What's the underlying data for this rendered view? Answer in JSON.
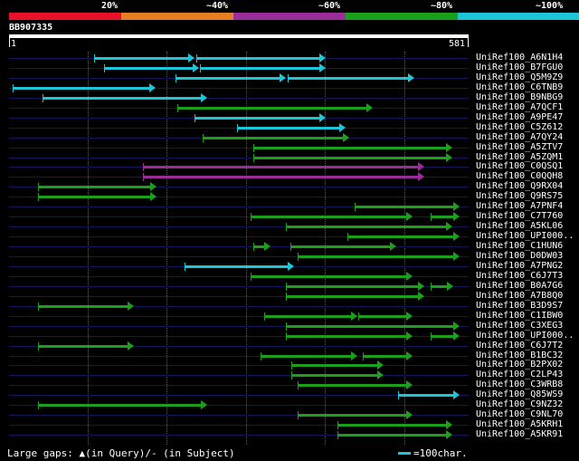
{
  "scale_bar": {
    "segments": [
      {
        "label": "20%",
        "color": "#e8102a"
      },
      {
        "label": "~40%",
        "color": "#e67e22"
      },
      {
        "label": "~60%",
        "color": "#9b2d9b"
      },
      {
        "label": "~80%",
        "color": "#1aa01a"
      },
      {
        "label": "~100%",
        "color": "#1cc6d6"
      }
    ]
  },
  "query": {
    "name": "BB907335",
    "start_label": "1",
    "end_label": "581",
    "length": 581
  },
  "hits": [
    {
      "name": "UniRef100_A6N1H4",
      "color": "#1cc6d6",
      "segs": [
        [
          107,
          235
        ],
        [
          237,
          400
        ]
      ]
    },
    {
      "name": "UniRef100_B7FGU0",
      "color": "#1cc6d6",
      "segs": [
        [
          120,
          240
        ],
        [
          241,
          400
        ]
      ]
    },
    {
      "name": "UniRef100_Q5M9Z9",
      "color": "#1cc6d6",
      "segs": [
        [
          210,
          350
        ],
        [
          352,
          512
        ]
      ]
    },
    {
      "name": "UniRef100_C6TNB9",
      "color": "#1cc6d6",
      "segs": [
        [
          5,
          185
        ]
      ]
    },
    {
      "name": "UniRef100_B9NBG9",
      "color": "#1cc6d6",
      "segs": [
        [
          42,
          250
        ]
      ]
    },
    {
      "name": "UniRef100_A7QCF1",
      "color": "#1aa01a",
      "segs": [
        [
          213,
          460
        ]
      ]
    },
    {
      "name": "UniRef100_A9PE47",
      "color": "#1cc6d6",
      "segs": [
        [
          235,
          400
        ]
      ]
    },
    {
      "name": "UniRef100_C5Z612",
      "color": "#1cc6d6",
      "segs": [
        [
          288,
          425
        ]
      ]
    },
    {
      "name": "UniRef100_A7QY24",
      "color": "#1aa01a",
      "segs": [
        [
          245,
          430
        ]
      ]
    },
    {
      "name": "UniRef100_A5ZTV7",
      "color": "#1aa01a",
      "segs": [
        [
          309,
          560
        ]
      ]
    },
    {
      "name": "UniRef100_A5ZQM1",
      "color": "#1aa01a",
      "segs": [
        [
          309,
          560
        ]
      ]
    },
    {
      "name": "UniRef100_C0QSQ1",
      "color": "#9b2d9b",
      "segs": [
        [
          169,
          525
        ]
      ]
    },
    {
      "name": "UniRef100_C0QQH8",
      "color": "#9b2d9b",
      "segs": [
        [
          169,
          525
        ]
      ]
    },
    {
      "name": "UniRef100_Q9RX04",
      "color": "#1aa01a",
      "segs": [
        [
          37,
          186
        ]
      ]
    },
    {
      "name": "UniRef100_Q9RS75",
      "color": "#1aa01a",
      "segs": [
        [
          37,
          186
        ]
      ]
    },
    {
      "name": "UniRef100_A7PNF4",
      "color": "#1aa01a",
      "segs": [
        [
          437,
          570
        ]
      ]
    },
    {
      "name": "UniRef100_C7T760",
      "color": "#1aa01a",
      "segs": [
        [
          305,
          510
        ],
        [
          533,
          570
        ]
      ]
    },
    {
      "name": "UniRef100_A5KL06",
      "color": "#1aa01a",
      "segs": [
        [
          350,
          560
        ]
      ]
    },
    {
      "name": "UniRef100_UPI000..",
      "color": "#1aa01a",
      "segs": [
        [
          428,
          570
        ]
      ]
    },
    {
      "name": "UniRef100_C1HUN6",
      "color": "#1aa01a",
      "segs": [
        [
          309,
          330
        ],
        [
          356,
          490
        ]
      ]
    },
    {
      "name": "UniRef100_D0DW03",
      "color": "#1aa01a",
      "segs": [
        [
          365,
          570
        ]
      ]
    },
    {
      "name": "UniRef100_A7PNG2",
      "color": "#1cc6d6",
      "segs": [
        [
          222,
          360
        ]
      ]
    },
    {
      "name": "UniRef100_C6J7T3",
      "color": "#1aa01a",
      "segs": [
        [
          305,
          510
        ]
      ]
    },
    {
      "name": "UniRef100_B0A7G6",
      "color": "#1aa01a",
      "segs": [
        [
          350,
          525
        ],
        [
          533,
          562
        ]
      ]
    },
    {
      "name": "UniRef100_A7B8Q0",
      "color": "#1aa01a",
      "segs": [
        [
          350,
          525
        ]
      ]
    },
    {
      "name": "UniRef100_B3D9S7",
      "color": "#1aa01a",
      "segs": [
        [
          37,
          158
        ]
      ]
    },
    {
      "name": "UniRef100_C1IBW0",
      "color": "#1aa01a",
      "segs": [
        [
          322,
          440
        ],
        [
          442,
          510
        ]
      ]
    },
    {
      "name": "UniRef100_C3XEG3",
      "color": "#1aa01a",
      "segs": [
        [
          350,
          570
        ]
      ]
    },
    {
      "name": "UniRef100_UPI000..",
      "color": "#1aa01a",
      "segs": [
        [
          350,
          510
        ],
        [
          533,
          570
        ]
      ]
    },
    {
      "name": "UniRef100_C6J7T2",
      "color": "#1aa01a",
      "segs": [
        [
          37,
          158
        ]
      ]
    },
    {
      "name": "UniRef100_B1BC32",
      "color": "#1aa01a",
      "segs": [
        [
          318,
          440
        ],
        [
          447,
          510
        ]
      ]
    },
    {
      "name": "UniRef100_B2PX02",
      "color": "#1aa01a",
      "segs": [
        [
          357,
          473
        ]
      ]
    },
    {
      "name": "UniRef100_C2LP43",
      "color": "#1aa01a",
      "segs": [
        [
          357,
          473
        ]
      ]
    },
    {
      "name": "UniRef100_C3WRB8",
      "color": "#1aa01a",
      "segs": [
        [
          365,
          510
        ]
      ]
    },
    {
      "name": "UniRef100_Q85WS9",
      "color": "#1cc6d6",
      "segs": [
        [
          492,
          570
        ]
      ]
    },
    {
      "name": "UniRef100_C9NZ32",
      "color": "#1aa01a",
      "segs": [
        [
          37,
          250
        ]
      ]
    },
    {
      "name": "UniRef100_C9NL70",
      "color": "#1aa01a",
      "segs": [
        [
          365,
          510
        ]
      ]
    },
    {
      "name": "UniRef100_A5KRH1",
      "color": "#1aa01a",
      "segs": [
        [
          415,
          560
        ]
      ]
    },
    {
      "name": "UniRef100_A5KR91",
      "color": "#1aa01a",
      "segs": [
        [
          415,
          560
        ]
      ]
    }
  ],
  "footer": {
    "legend_text": "Large gaps: ▲(in Query)/- (in Subject)",
    "scale_key": "=100char."
  },
  "colors": {
    "background": "#000000",
    "cyan": "#1cc6d6",
    "green": "#1aa01a",
    "purple": "#9b2d9b",
    "row_line": "#15155a"
  }
}
